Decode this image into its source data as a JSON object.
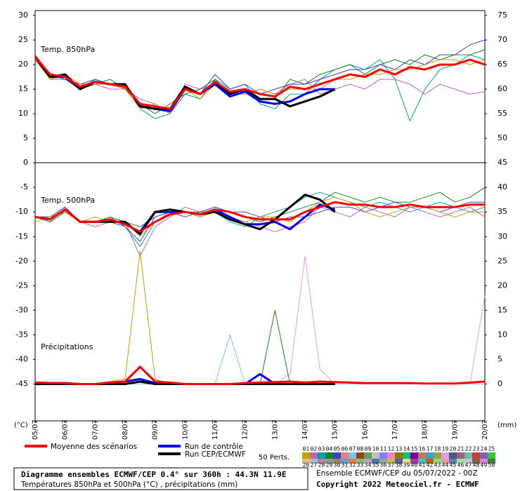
{
  "chart_data": {
    "type": "line",
    "annotations": [
      "Temp. 850hPa",
      "Temp. 500hPa",
      "Précipitations"
    ],
    "ylabel": "(°C)",
    "y2label": "(mm)",
    "categories": [
      "05/07",
      null,
      "06/07",
      null,
      "07/07",
      null,
      "08/07",
      null,
      "09/07",
      null,
      "10/07",
      null,
      "11/07",
      null,
      "12/07",
      null,
      "13/07",
      null,
      "14/07",
      null,
      "15/07",
      null,
      "16/07",
      null,
      "17/07",
      null,
      "18/07",
      null,
      "19/07",
      null,
      "20/07"
    ],
    "ylim": [
      -52.5,
      31
    ],
    "yticks": [
      30,
      25,
      20,
      15,
      10,
      5,
      0,
      -5,
      -10,
      -15,
      -20,
      -25,
      -30,
      -35,
      -40,
      -45
    ],
    "y2lim": [
      -7.5,
      76
    ],
    "y2ticks": [
      75,
      70,
      65,
      60,
      55,
      50,
      45,
      40,
      35,
      30,
      25,
      20,
      15,
      10,
      5,
      0
    ],
    "legend": [
      {
        "name": "Moyenne des scénarios",
        "color": "#ff0000"
      },
      {
        "name": "Run de contrôle",
        "color": "#0000ff"
      },
      {
        "name": "Run CEP/ECMWF",
        "color": "#000000"
      }
    ],
    "perts_label": "50 Perts.",
    "perturbations": [
      {
        "name": "01",
        "color": "#c0a000"
      },
      {
        "name": "02",
        "color": "#c060c0"
      },
      {
        "name": "03",
        "color": "#00a0a0"
      },
      {
        "name": "04",
        "color": "#208020"
      },
      {
        "name": "05",
        "color": "#4040c0"
      },
      {
        "name": "06",
        "color": "#e08080"
      },
      {
        "name": "07",
        "color": "#80c0e0"
      },
      {
        "name": "08",
        "color": "#a04000"
      },
      {
        "name": "09",
        "color": "#60a060"
      },
      {
        "name": "10",
        "color": "#c0c0c0"
      },
      {
        "name": "11",
        "color": "#8080ff"
      },
      {
        "name": "12",
        "color": "#ff80c0"
      },
      {
        "name": "13",
        "color": "#808000"
      },
      {
        "name": "14",
        "color": "#00c080"
      },
      {
        "name": "15",
        "color": "#8000a0"
      },
      {
        "name": "16",
        "color": "#c08040"
      },
      {
        "name": "17",
        "color": "#40a0c0"
      },
      {
        "name": "18",
        "color": "#a0a040"
      },
      {
        "name": "19",
        "color": "#e0a0e0"
      },
      {
        "name": "20",
        "color": "#406080"
      },
      {
        "name": "21",
        "color": "#a06080"
      },
      {
        "name": "22",
        "color": "#60c0a0"
      },
      {
        "name": "23",
        "color": "#c04040"
      },
      {
        "name": "24",
        "color": "#8060c0"
      },
      {
        "name": "25",
        "color": "#40c040"
      },
      {
        "name": "26",
        "color": "#e0c080"
      },
      {
        "name": "27",
        "color": "#a0c0e0"
      },
      {
        "name": "28",
        "color": "#c080a0"
      },
      {
        "name": "29",
        "color": "#80a0a0"
      },
      {
        "name": "30",
        "color": "#a08060"
      },
      {
        "name": "31",
        "color": "#60a0e0"
      },
      {
        "name": "32",
        "color": "#e08040"
      },
      {
        "name": "33",
        "color": "#80c080"
      },
      {
        "name": "34",
        "color": "#c0a0c0"
      },
      {
        "name": "35",
        "color": "#4080a0"
      },
      {
        "name": "36",
        "color": "#a0a0a0"
      },
      {
        "name": "37",
        "color": "#c0c040"
      },
      {
        "name": "38",
        "color": "#6060a0"
      },
      {
        "name": "39",
        "color": "#e0e080"
      },
      {
        "name": "40",
        "color": "#a040a0"
      },
      {
        "name": "41",
        "color": "#40c0c0"
      },
      {
        "name": "42",
        "color": "#c06020"
      },
      {
        "name": "43",
        "color": "#80e080"
      },
      {
        "name": "44",
        "color": "#e0a0a0"
      },
      {
        "name": "45",
        "color": "#6080c0"
      },
      {
        "name": "46",
        "color": "#a0e0a0"
      },
      {
        "name": "47",
        "color": "#c0c0e0"
      },
      {
        "name": "48",
        "color": "#806040"
      },
      {
        "name": "49",
        "color": "#e080e0"
      },
      {
        "name": "50",
        "color": "#408040"
      }
    ],
    "series": [
      {
        "name": "03",
        "color": "#00a0a0",
        "values": [
          21,
          17,
          18,
          15,
          17,
          16,
          16,
          11,
          9,
          10,
          14,
          13,
          17,
          15,
          16,
          12,
          11,
          14,
          14,
          17,
          19,
          20,
          19,
          21,
          17,
          8.5,
          15,
          19,
          20,
          22,
          21
        ]
      },
      {
        "name": "02",
        "color": "#c060c0",
        "values": [
          22,
          17,
          17,
          16,
          16,
          15,
          15,
          13,
          12,
          10,
          16,
          15,
          16,
          14,
          14,
          15,
          14,
          16,
          17,
          14,
          15,
          16,
          15,
          17,
          17,
          16,
          14,
          16,
          15,
          14,
          14.5
        ]
      },
      {
        "name": "04",
        "color": "#208020",
        "values": [
          21,
          18,
          17,
          15,
          16,
          17,
          15,
          12,
          10,
          12,
          14,
          15,
          17,
          14,
          15,
          13,
          13,
          17,
          16,
          18,
          19,
          20,
          18,
          20,
          21,
          20,
          22,
          21,
          22,
          22,
          23
        ]
      },
      {
        "name": "05",
        "color": "#4040c0",
        "values": [
          22,
          18,
          17,
          16,
          17,
          16,
          16,
          12,
          11,
          11,
          15,
          14,
          18,
          15,
          16,
          14,
          15,
          16,
          16,
          17,
          18,
          19,
          19,
          20,
          19,
          21,
          20,
          22,
          22,
          24,
          25
        ]
      },
      {
        "name": "01",
        "color": "#c0a000",
        "values": [
          21,
          17,
          18,
          16,
          16,
          16,
          15,
          11,
          12,
          10,
          15,
          13,
          16,
          14,
          14,
          15,
          14,
          15,
          15,
          15,
          17,
          17,
          18,
          18,
          19,
          19,
          20,
          21,
          21,
          20,
          21
        ]
      },
      {
        "name": "03",
        "color": "#00a0a0",
        "values": [
          -11,
          -12,
          -10,
          -12,
          -12,
          -11,
          -13,
          -17,
          -12,
          -10,
          -10,
          -11,
          -10,
          -12,
          -13,
          -11,
          -10,
          -9,
          -7,
          -6,
          -7,
          -8,
          -9,
          -8,
          -9,
          -10,
          -9,
          -8,
          -9,
          -10,
          -9
        ]
      },
      {
        "name": "02",
        "color": "#c060c0",
        "values": [
          -11,
          -11,
          -9,
          -12,
          -13,
          -12,
          -12,
          -19,
          -13,
          -11,
          -9,
          -10,
          -10,
          -11,
          -12,
          -13,
          -14,
          -13,
          -12,
          -9,
          -10,
          -11,
          -9,
          -10,
          -11,
          -9,
          -10,
          -11,
          -10,
          -9,
          -11
        ]
      },
      {
        "name": "04",
        "color": "#208020",
        "values": [
          -11,
          -12,
          -10,
          -12,
          -12,
          -11,
          -12,
          -13,
          -11,
          -10,
          -10,
          -10,
          -9,
          -10,
          -11,
          -12,
          -11,
          -10,
          -9,
          -8,
          -6,
          -7,
          -8,
          -7,
          -8,
          -8,
          -7,
          -6,
          -8,
          -7,
          -5
        ]
      },
      {
        "name": "05",
        "color": "#4040c0",
        "values": [
          -11,
          -11,
          -9,
          -12,
          -12,
          -12,
          -13,
          -16,
          -11,
          -10,
          -11,
          -10,
          -9,
          -10,
          -10,
          -11,
          -12,
          -11,
          -11,
          -10,
          -9,
          -9,
          -10,
          -9,
          -8,
          -9,
          -9,
          -10,
          -9,
          -8,
          -8
        ]
      },
      {
        "name": "01",
        "color": "#c0a000",
        "values": [
          -12,
          -11,
          -10,
          -12,
          -11,
          -12,
          -12,
          -15,
          -12,
          -10,
          -10,
          -11,
          -10,
          -11,
          -12,
          -11,
          -11,
          -12,
          -10,
          -8,
          -7,
          -8,
          -10,
          -11,
          -10,
          -9,
          -9,
          -10,
          -11,
          -10,
          -10
        ]
      },
      {
        "name": "01",
        "color": "#c0a000",
        "axis": "y2",
        "values": [
          0,
          0,
          0,
          0,
          0,
          0.5,
          1,
          27,
          1,
          0,
          0,
          0,
          0,
          0,
          0,
          0,
          0,
          0,
          0,
          0,
          0,
          0,
          0,
          0,
          0,
          0,
          0,
          0,
          0,
          0,
          0
        ]
      },
      {
        "name": "19",
        "color": "#e0a0e0",
        "axis": "y2",
        "values": [
          0,
          0,
          0,
          0,
          0,
          0,
          0,
          0,
          0,
          0,
          0,
          0,
          0,
          0,
          0,
          0,
          0,
          2,
          26,
          3,
          0,
          0,
          0,
          0,
          0,
          0,
          0,
          0,
          0,
          0,
          18
        ]
      },
      {
        "name": "04",
        "color": "#208020",
        "axis": "y2",
        "values": [
          0,
          0,
          0,
          0,
          0,
          0,
          0,
          0,
          0,
          0,
          0,
          0,
          0,
          0,
          0,
          0,
          15,
          0,
          0,
          0,
          0,
          0,
          0,
          0,
          0,
          0,
          0,
          0,
          0,
          0,
          0
        ]
      },
      {
        "name": "07",
        "color": "#80c0e0",
        "axis": "y2",
        "values": [
          0,
          0,
          0,
          0,
          0,
          0,
          0,
          0,
          0,
          0,
          0,
          0,
          0,
          10,
          0,
          0,
          0,
          0,
          0,
          0,
          0,
          0,
          0,
          0,
          0,
          0,
          0,
          0,
          0,
          0,
          0
        ]
      },
      {
        "name": "Run de contrôle",
        "color": "#0000ff",
        "values": [
          21.5,
          17.5,
          17.5,
          15,
          16.5,
          16,
          16,
          11.5,
          11,
          10.5,
          15,
          14,
          16,
          13.5,
          14.5,
          12.5,
          12,
          12.5,
          14,
          15,
          15,
          null,
          null,
          null,
          null,
          null,
          null,
          null,
          null,
          null,
          null
        ]
      },
      {
        "name": "Run CEP/ECMWF",
        "color": "#000000",
        "values": [
          21.5,
          17.5,
          18,
          15,
          16.5,
          16,
          16,
          11.5,
          11,
          11,
          15.5,
          14,
          16.5,
          14,
          15,
          13,
          13,
          11.5,
          12.5,
          13.5,
          15,
          null,
          null,
          null,
          null,
          null,
          null,
          null,
          null,
          null,
          null
        ]
      },
      {
        "name": "Moyenne des scénarios",
        "color": "#ff0000",
        "values": [
          21.5,
          18,
          17.5,
          15.5,
          16.5,
          16,
          15.5,
          12,
          11.5,
          11,
          15,
          14,
          16.5,
          14.5,
          15,
          14,
          13.5,
          15.5,
          15,
          16,
          17,
          18,
          17.5,
          19,
          18,
          19.5,
          19,
          20,
          20,
          21,
          20
        ]
      },
      {
        "name": "Run de contrôle",
        "color": "#0000ff",
        "values": [
          -11,
          -11.5,
          -9.5,
          -12,
          -12,
          -11.5,
          -12.5,
          -14,
          -10,
          -10,
          -10,
          -10.5,
          -9.5,
          -11,
          -12.5,
          -12.5,
          -12,
          -13.5,
          -11,
          -8.5,
          -9.5,
          null,
          null,
          null,
          null,
          null,
          null,
          null,
          null,
          null,
          null
        ]
      },
      {
        "name": "Run CEP/ECMWF",
        "color": "#000000",
        "values": [
          -11,
          -11.5,
          -9.5,
          -12,
          -12,
          -12,
          -12,
          -14.5,
          -10,
          -9.5,
          -10,
          -10.5,
          -10,
          -11.5,
          -12.5,
          -13.5,
          -11.5,
          -9,
          -6.5,
          -7.5,
          -10,
          null,
          null,
          null,
          null,
          null,
          null,
          null,
          null,
          null,
          null
        ]
      },
      {
        "name": "Moyenne des scénarios",
        "color": "#ff0000",
        "values": [
          -11,
          -11.5,
          -9.5,
          -12,
          -12,
          -11.5,
          -12.5,
          -14,
          -12,
          -10.5,
          -10,
          -10.5,
          -9.5,
          -10,
          -11,
          -11.5,
          -11.5,
          -11.5,
          -10,
          -9,
          -8,
          -8.5,
          -8.5,
          -9,
          -9,
          -8.5,
          -9,
          -9,
          -9,
          -8.5,
          -8.5
        ]
      },
      {
        "name": "Run de contrôle",
        "color": "#0000ff",
        "axis": "y2",
        "values": [
          0.3,
          0.2,
          0.2,
          0,
          0,
          0.3,
          0.5,
          1,
          0.2,
          0,
          0,
          0,
          0,
          0,
          0,
          2,
          0,
          0,
          0,
          0,
          0,
          null,
          null,
          null,
          null,
          null,
          null,
          null,
          null,
          null,
          null
        ]
      },
      {
        "name": "Run CEP/ECMWF",
        "color": "#000000",
        "axis": "y2",
        "values": [
          0,
          0,
          0,
          0,
          0,
          0,
          0,
          0.5,
          0,
          0,
          0,
          0,
          0,
          0,
          0,
          0,
          0,
          0,
          0,
          0,
          0,
          null,
          null,
          null,
          null,
          null,
          null,
          null,
          null,
          null,
          null
        ]
      },
      {
        "name": "Moyenne des scénarios",
        "color": "#ff0000",
        "axis": "y2",
        "values": [
          0.3,
          0.2,
          0.2,
          0,
          0,
          0.3,
          0.5,
          3.5,
          0.5,
          0.3,
          0,
          0,
          0,
          0,
          0.2,
          0.3,
          0.4,
          0.5,
          0.3,
          0.5,
          0.4,
          0.3,
          0.2,
          0.2,
          0.2,
          0.2,
          0.1,
          0.1,
          0.1,
          0.3,
          0.5
        ]
      }
    ]
  },
  "footer": {
    "title": "Diagramme ensembles ECMWF/CEP 0.4° sur 360h : 44.3N 11.9E",
    "subtitle": "Températures 850hPa et 500hPa (°C) , précipitations (mm)",
    "run": "Ensemble ECMWF/CEP du 05/07/2022 - 00Z",
    "copyright": "Copyright 2022 Meteociel.fr - ECMWF"
  }
}
